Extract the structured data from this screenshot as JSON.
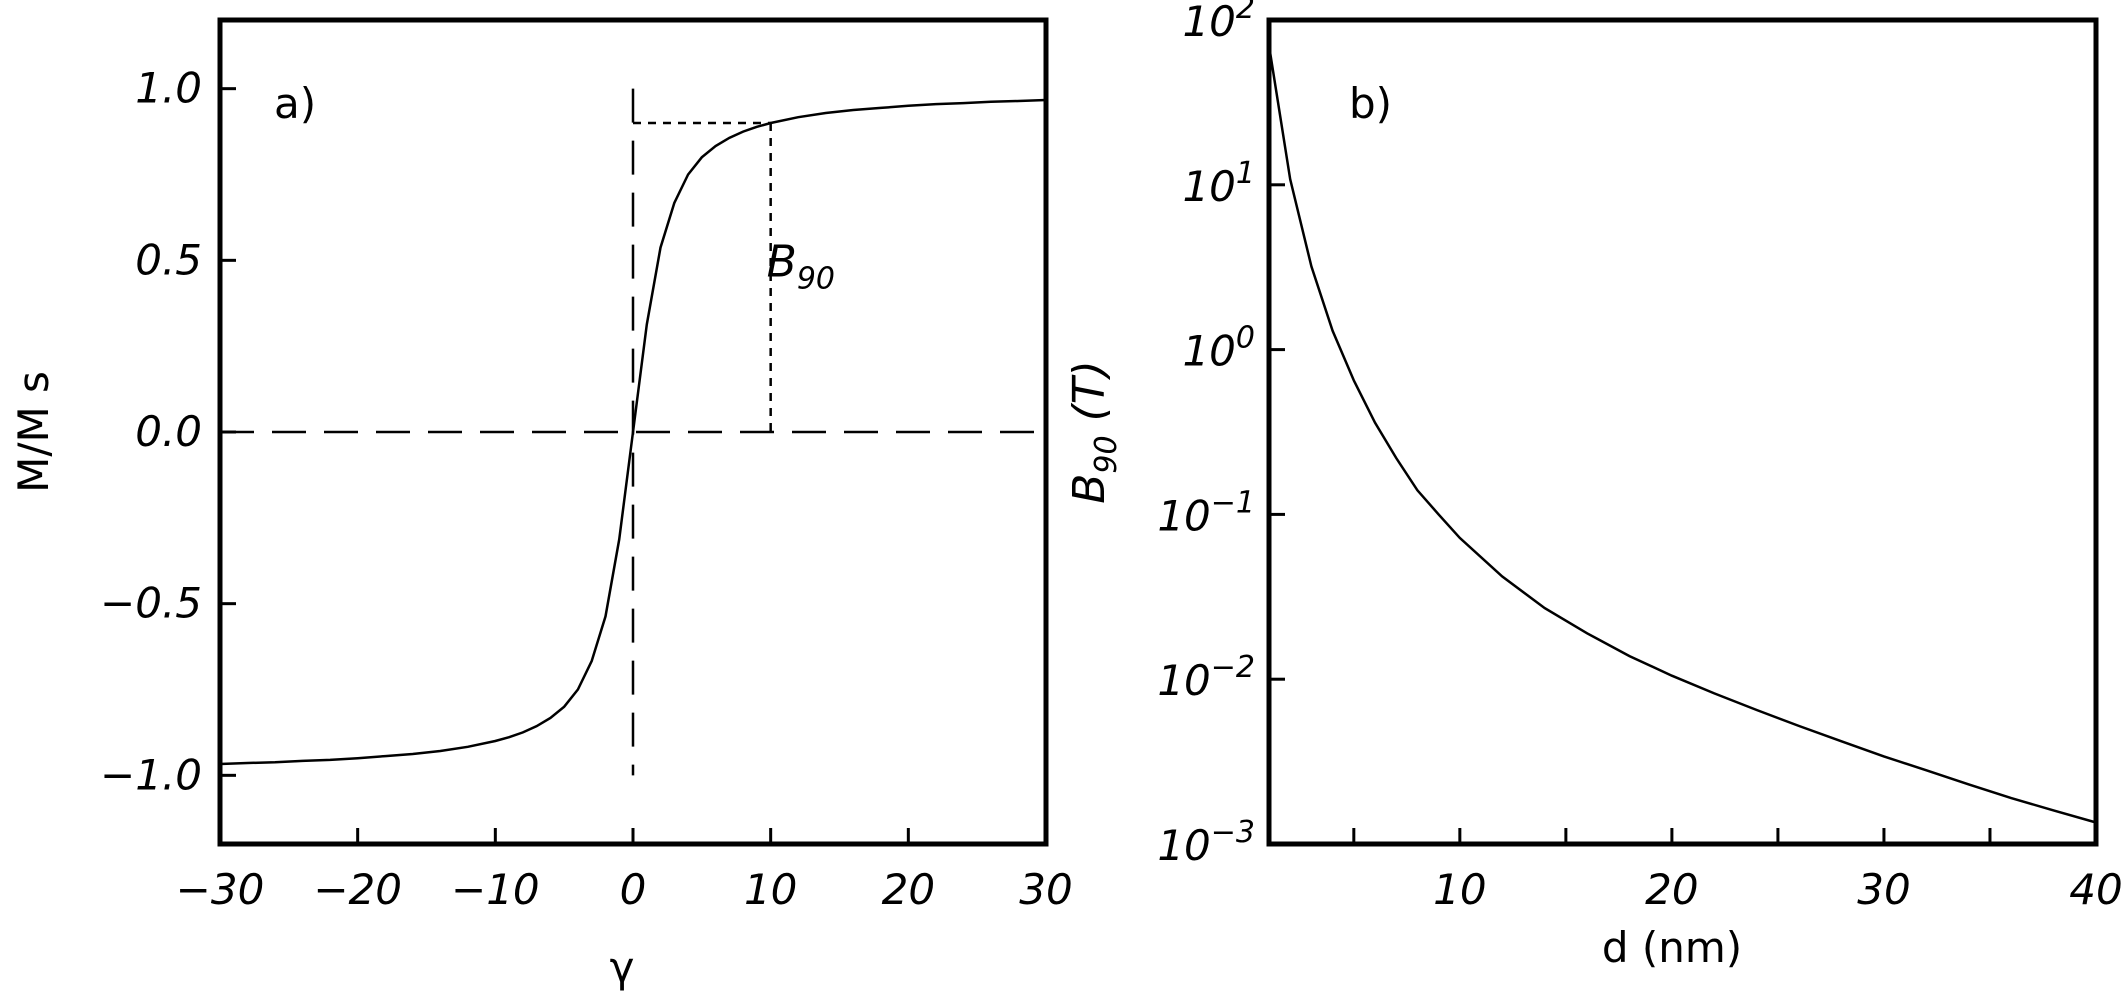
{
  "chart_data": [
    {
      "type": "line",
      "panel_label": "a)",
      "xlabel": "γ",
      "ylabel": "M/M s",
      "xlim": [
        -30,
        30
      ],
      "ylim": [
        -1.2,
        1.2
      ],
      "xticks": [
        -30,
        -20,
        -10,
        0,
        10,
        20,
        30
      ],
      "xtick_labels": [
        "−30",
        "−20",
        "−10",
        "0",
        "10",
        "20",
        "30"
      ],
      "yticks": [
        -1.0,
        -0.5,
        0.0,
        0.5,
        1.0
      ],
      "ytick_labels": [
        "−1.0",
        "−0.5",
        "0.0",
        "0.5",
        "1.0"
      ],
      "series": [
        {
          "x": [
            -30,
            -28,
            -26,
            -24,
            -22,
            -20,
            -18,
            -16,
            -14,
            -12,
            -10,
            -9,
            -8,
            -7,
            -6,
            -5,
            -4,
            -3,
            -2,
            -1,
            0,
            1,
            2,
            3,
            4,
            5,
            6,
            7,
            8,
            9,
            10,
            12,
            14,
            16,
            18,
            20,
            22,
            24,
            26,
            28,
            30
          ],
          "y": [
            -0.967,
            -0.964,
            -0.962,
            -0.958,
            -0.955,
            -0.95,
            -0.944,
            -0.938,
            -0.929,
            -0.917,
            -0.9,
            -0.889,
            -0.875,
            -0.857,
            -0.833,
            -0.8,
            -0.75,
            -0.667,
            -0.537,
            -0.313,
            0.0,
            0.313,
            0.537,
            0.667,
            0.75,
            0.8,
            0.833,
            0.857,
            0.875,
            0.889,
            0.9,
            0.917,
            0.929,
            0.938,
            0.944,
            0.95,
            0.955,
            0.958,
            0.962,
            0.964,
            0.967
          ]
        }
      ],
      "annotations": [
        {
          "text": "B",
          "subscript": "90",
          "x": 10,
          "y": 0.5
        }
      ],
      "reference_lines": {
        "vertical_x": 0,
        "horizontal_y": 0,
        "marker_x": 10,
        "marker_y": 0.9
      }
    },
    {
      "type": "line",
      "panel_label": "b)",
      "xlabel": "d (nm)",
      "ylabel": "B",
      "ylabel_subscript": "90",
      "ylabel_unit": "(T)",
      "xlim": [
        1,
        40
      ],
      "ylim": [
        0.001,
        100
      ],
      "yscale": "log",
      "xticks": [
        10,
        20,
        30,
        40
      ],
      "xtick_labels": [
        "10",
        "20",
        "30",
        "40"
      ],
      "x_minor_ticks": [
        5,
        15,
        25,
        35
      ],
      "yticks": [
        0.001,
        0.01,
        0.1,
        1,
        10,
        100
      ],
      "ytick_labels": [
        {
          "base": "10",
          "exp": "−3"
        },
        {
          "base": "10",
          "exp": "−2"
        },
        {
          "base": "10",
          "exp": "−1"
        },
        {
          "base": "10",
          "exp": "0"
        },
        {
          "base": "10",
          "exp": "1"
        },
        {
          "base": "10",
          "exp": "2"
        }
      ],
      "series": [
        {
          "x": [
            1,
            2,
            3,
            4,
            5,
            6,
            7,
            8,
            9,
            10,
            12,
            14,
            16,
            18,
            20,
            22,
            24,
            26,
            28,
            30,
            32,
            34,
            36,
            38,
            40
          ],
          "y": [
            70,
            10.8,
            3.2,
            1.3,
            0.65,
            0.36,
            0.22,
            0.14,
            0.1,
            0.072,
            0.042,
            0.027,
            0.019,
            0.0138,
            0.0105,
            0.0082,
            0.0065,
            0.0052,
            0.0042,
            0.0034,
            0.0028,
            0.0023,
            0.0019,
            0.0016,
            0.00135
          ]
        }
      ]
    }
  ]
}
